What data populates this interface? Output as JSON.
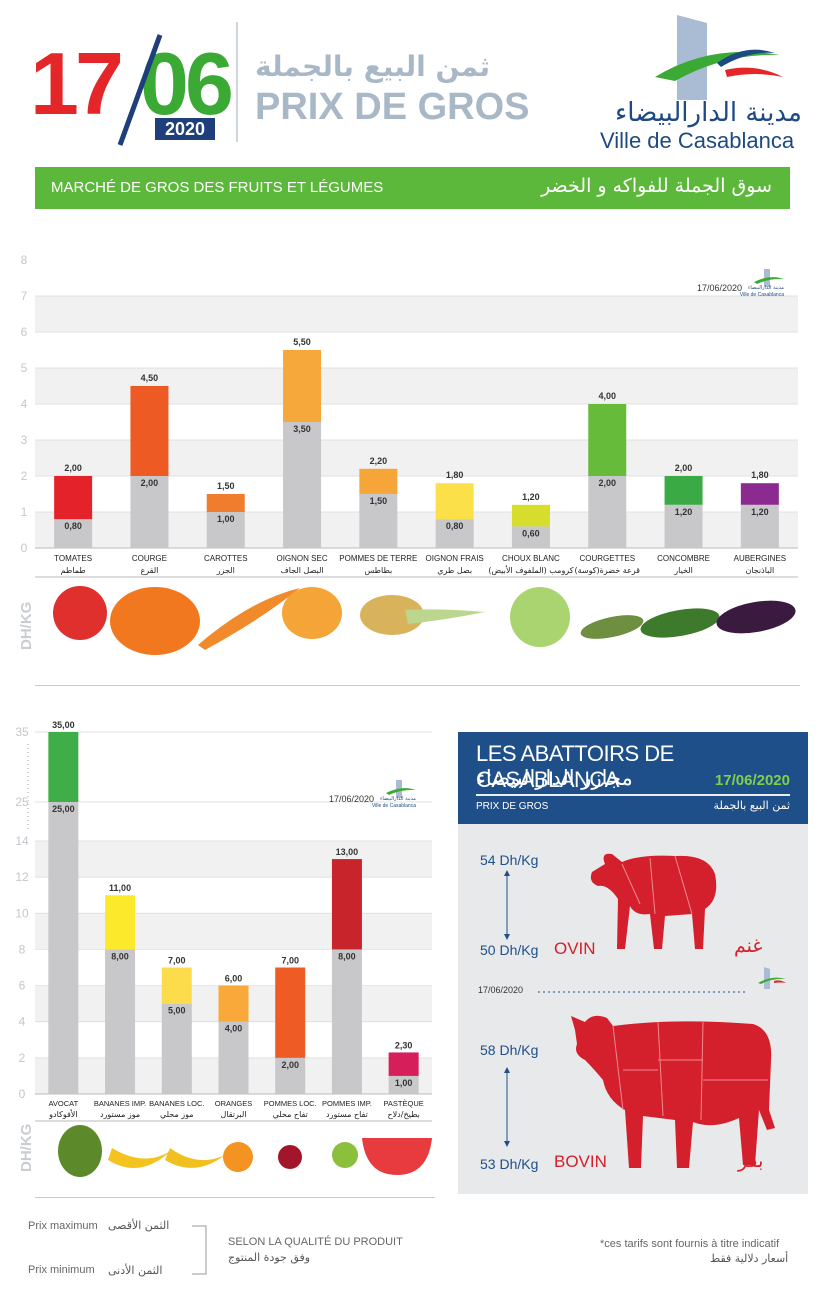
{
  "header": {
    "date_day": "17",
    "date_month": "06",
    "date_year": "2020",
    "title_ar": "ثمن البيع بالجملة",
    "title_fr": "PRIX DE GROS",
    "city_ar": "مدينة الدارالبيضاء",
    "city_fr": "Ville de Casablanca",
    "colors": {
      "red": "#e52629",
      "green": "#3aaa35",
      "navy": "#1f3e7c",
      "grey_title": "#a9b8c6"
    }
  },
  "banner": {
    "fr": "MARCHÉ DE GROS DES FRUITS ET LÉGUMES",
    "ar": "سوق الجملة للفواكه و الخضر",
    "color": "#5cb83a"
  },
  "chart_data": [
    {
      "type": "bar",
      "stamp_date": "17/06/2020",
      "stamp_city_ar": "مدينة الدارالبيضاء",
      "stamp_city_fr": "Ville de Casablanca",
      "unit_label": "DH/KG",
      "ylim": [
        0,
        8
      ],
      "yticks": [
        "0",
        "1",
        "2",
        "3",
        "4",
        "5",
        "6",
        "7",
        "8"
      ],
      "grid": true,
      "categories_fr": [
        "TOMATES",
        "COURGE",
        "CAROTTES",
        "OIGNON SEC",
        "POMMES DE TERRE",
        "OIGNON FRAIS",
        "CHOUX BLANC",
        "COURGETTES",
        "CONCOMBRE",
        "AUBERGINES"
      ],
      "categories_ar": [
        "طماطم",
        "القرع",
        "الجزر",
        "البصل الجاف",
        "بطاطس",
        "بصل طري",
        "كرومب (الملفوف الأبيض)",
        "قرعة خضرة(كوسة)",
        "الخيار",
        "الباذنجان"
      ],
      "series": [
        {
          "name": "Prix minimum",
          "values": [
            0.8,
            2.0,
            1.0,
            3.5,
            1.5,
            0.8,
            0.6,
            2.0,
            1.2,
            1.2
          ]
        },
        {
          "name": "Prix maximum",
          "values": [
            2.0,
            4.5,
            1.5,
            5.5,
            2.2,
            1.8,
            1.2,
            4.0,
            2.0,
            1.8
          ]
        }
      ],
      "labels_min": [
        "0,80",
        "2,00",
        "1,00",
        "3,50",
        "1,50",
        "0,80",
        "0,60",
        "2,00",
        "1,20",
        "1,20"
      ],
      "labels_max": [
        "2,00",
        "4,50",
        "1,50",
        "5,50",
        "2,20",
        "1,80",
        "1,20",
        "4,00",
        "2,00",
        "1,80"
      ],
      "bar_colors": [
        "#e3222a",
        "#ee5a24",
        "#f07c2e",
        "#f7a83a",
        "#f6a539",
        "#fce049",
        "#d6dd2a",
        "#66bb3a",
        "#3aaa45",
        "#8b2b8f"
      ]
    },
    {
      "type": "bar",
      "stamp_date": "17/06/2020",
      "stamp_city_ar": "مدينة الدارالبيضاء",
      "stamp_city_fr": "Ville de Casablanca",
      "unit_label": "DH/KG",
      "axis_break": true,
      "ylim": [
        0,
        35
      ],
      "yticks": [
        "0",
        "2",
        "4",
        "6",
        "8",
        "10",
        "12",
        "14",
        "25",
        "35"
      ],
      "grid": true,
      "categories_fr": [
        "AVOCAT",
        "BANANES IMP.",
        "BANANES LOC.",
        "ORANGES",
        "POMMES LOC.",
        "POMMES IMP.",
        "PASTÈQUE"
      ],
      "categories_ar": [
        "الأفوكادو",
        "موز مستورد",
        "موز محلي",
        "البرتقال",
        "تفاح محلي",
        "تفاح مستورد",
        "بطيخ/دلاح"
      ],
      "series": [
        {
          "name": "Prix minimum",
          "values": [
            25.0,
            8.0,
            5.0,
            4.0,
            2.0,
            8.0,
            1.0
          ]
        },
        {
          "name": "Prix maximum",
          "values": [
            35.0,
            11.0,
            7.0,
            6.0,
            7.0,
            13.0,
            2.3
          ]
        }
      ],
      "labels_min": [
        "25,00",
        "8,00",
        "5,00",
        "4,00",
        "2,00",
        "8,00",
        "1,00"
      ],
      "labels_max": [
        "35,00",
        "11,00",
        "7,00",
        "6,00",
        "7,00",
        "13,00",
        "2,30"
      ],
      "bar_colors": [
        "#3fae49",
        "#fde92b",
        "#fddc4c",
        "#f8a93a",
        "#ef5b25",
        "#c7252b",
        "#d61e5a"
      ]
    }
  ],
  "abattoirs": {
    "title_fr": "LES ABATTOIRS DE CASABLANCA",
    "title_ar": "مجازر الدارالبيضاء",
    "date": "17/06/2020",
    "sub_fr": "PRIX DE GROS",
    "sub_ar": "ثمن البيع بالجملة",
    "mid_date": "17/06/2020",
    "ovin": {
      "label_fr": "OVIN",
      "label_ar": "غنم",
      "max": "54 Dh/Kg",
      "min": "50 Dh/Kg"
    },
    "bovin": {
      "label_fr": "BOVIN",
      "label_ar": "بقر",
      "max": "58 Dh/Kg",
      "min": "53 Dh/Kg"
    },
    "colors": {
      "panel": "#1f4f89",
      "meat": "#d4202c"
    }
  },
  "legend": {
    "max_fr": "Prix maximum",
    "max_ar": "الثمن الأقصى",
    "min_fr": "Prix minimum",
    "min_ar": "الثمن الأدنى",
    "quality_fr": "SELON LA QUALITÉ DU PRODUIT",
    "quality_ar": "وفق جودة المنتوج",
    "note_fr": "*ces tarifs sont fournis à titre indicatif",
    "note_ar": "أسعار دلالية فقط"
  }
}
